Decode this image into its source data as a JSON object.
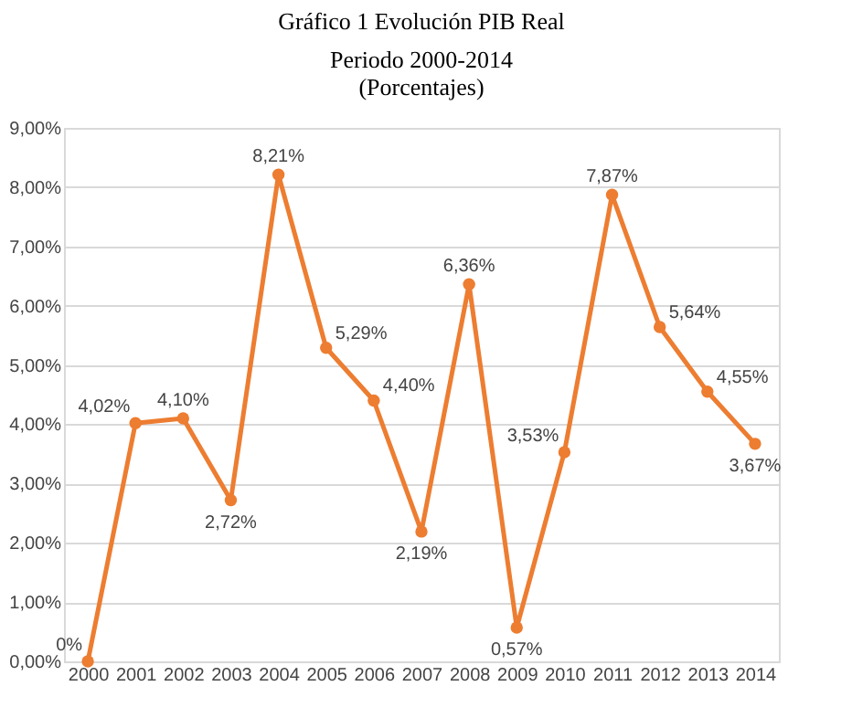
{
  "chart_data": {
    "type": "line",
    "title": "Gráfico 1 Evolución PIB Real",
    "subtitle": "Periodo 2000-2014\n(Porcentajes)",
    "categories": [
      "2000",
      "2001",
      "2002",
      "2003",
      "2004",
      "2005",
      "2006",
      "2007",
      "2008",
      "2009",
      "2010",
      "2011",
      "2012",
      "2013",
      "2014"
    ],
    "series": [
      {
        "color": "#ed7d31",
        "values": [
          0,
          4.02,
          4.1,
          2.72,
          8.21,
          5.29,
          4.4,
          2.19,
          6.36,
          0.57,
          3.53,
          7.87,
          5.64,
          4.55,
          3.67
        ],
        "value_labels": [
          "0%",
          "4,02%",
          "4,10%",
          "2,72%",
          "8,21%",
          "5,29%",
          "4,40%",
          "2,19%",
          "6,36%",
          "0,57%",
          "3,53%",
          "7,87%",
          "5,64%",
          "4,55%",
          "3,67%"
        ]
      }
    ],
    "ylim": [
      0,
      9
    ],
    "yticks": [
      {
        "value": 0,
        "label": "0,00%"
      },
      {
        "value": 1,
        "label": "1,00%"
      },
      {
        "value": 2,
        "label": "2,00%"
      },
      {
        "value": 3,
        "label": "3,00%"
      },
      {
        "value": 4,
        "label": "4,00%"
      },
      {
        "value": 5,
        "label": "5,00%"
      },
      {
        "value": 6,
        "label": "6,00%"
      },
      {
        "value": 7,
        "label": "7,00%"
      },
      {
        "value": 8,
        "label": "8,00%"
      },
      {
        "value": 9,
        "label": "9,00%"
      }
    ],
    "grid": "y",
    "marker": "circle",
    "line_style": "solid"
  }
}
